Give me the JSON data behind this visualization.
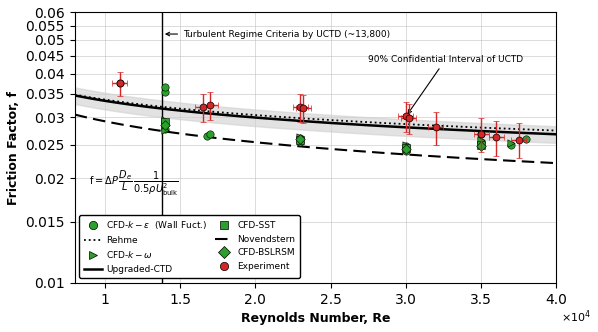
{
  "title": "",
  "xlabel": "Reynolds Number, Re",
  "ylabel": "Friction Factor, f",
  "xlim": [
    8000,
    40000
  ],
  "ylim": [
    0.01,
    0.06
  ],
  "yticks": [
    0.01,
    0.015,
    0.02,
    0.025,
    0.03,
    0.035,
    0.04,
    0.045,
    0.05,
    0.055,
    0.06
  ],
  "turbulent_line_x": 13800,
  "turbulent_annotation": "Turbulent Regime Criteria by UCTD (~13,800)",
  "ci_annotation": "90% Confidential Interval of UCTD",
  "ci_band_color": "#d0d0d0",
  "ci_band_alpha": 0.6,
  "green_marker_color": "#2ca02c",
  "exp_marker_color": "#d62728",
  "cfd_ke_Re": [
    11000,
    14000,
    14000,
    14000,
    16800,
    17000,
    23000,
    23000,
    30000,
    30000,
    35000,
    35000,
    37000,
    38000
  ],
  "cfd_ke_f": [
    0.0375,
    0.0278,
    0.0355,
    0.0365,
    0.0265,
    0.0268,
    0.0255,
    0.0261,
    0.0248,
    0.024,
    0.0255,
    0.0268,
    0.025,
    0.026
  ],
  "cfd_komega_Re": [
    14000,
    14000,
    14000,
    23000,
    30000,
    35000,
    37000
  ],
  "cfd_komega_f": [
    0.0275,
    0.0285,
    0.0295,
    0.0262,
    0.025,
    0.0258,
    0.0252
  ],
  "cfd_sst_Re": [
    14000,
    23000,
    30000,
    35000
  ],
  "cfd_sst_f": [
    0.029,
    0.0258,
    0.0245,
    0.025
  ],
  "cfd_bsl_Re": [
    14000,
    23000,
    30000,
    35000
  ],
  "cfd_bsl_f": [
    0.0285,
    0.026,
    0.0242,
    0.0248
  ],
  "exp_Re": [
    11000,
    16500,
    17000,
    23000,
    23200,
    30000,
    30200,
    32000,
    35000,
    36000,
    37500
  ],
  "exp_f": [
    0.0375,
    0.032,
    0.0325,
    0.032,
    0.0318,
    0.0302,
    0.0298,
    0.028,
    0.0268,
    0.0262,
    0.0258
  ],
  "exp_yerr": [
    0.003,
    0.003,
    0.003,
    0.003,
    0.003,
    0.003,
    0.003,
    0.003,
    0.003,
    0.003,
    0.003
  ],
  "exp_xerr": [
    500,
    500,
    500,
    500,
    500,
    500,
    500,
    500,
    500,
    500,
    500
  ]
}
